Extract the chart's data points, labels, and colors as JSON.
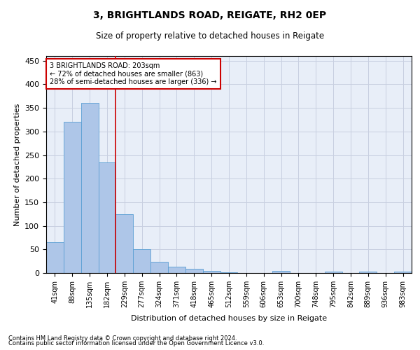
{
  "title": "3, BRIGHTLANDS ROAD, REIGATE, RH2 0EP",
  "subtitle": "Size of property relative to detached houses in Reigate",
  "xlabel": "Distribution of detached houses by size in Reigate",
  "ylabel": "Number of detached properties",
  "footnote1": "Contains HM Land Registry data © Crown copyright and database right 2024.",
  "footnote2": "Contains public sector information licensed under the Open Government Licence v3.0.",
  "bar_labels": [
    "41sqm",
    "88sqm",
    "135sqm",
    "182sqm",
    "229sqm",
    "277sqm",
    "324sqm",
    "371sqm",
    "418sqm",
    "465sqm",
    "512sqm",
    "559sqm",
    "606sqm",
    "653sqm",
    "700sqm",
    "748sqm",
    "795sqm",
    "842sqm",
    "889sqm",
    "936sqm",
    "983sqm"
  ],
  "bar_values": [
    65,
    320,
    360,
    234,
    125,
    50,
    24,
    13,
    9,
    5,
    2,
    0,
    0,
    4,
    0,
    0,
    3,
    0,
    3,
    0,
    3
  ],
  "bar_color": "#aec6e8",
  "bar_edge_color": "#5a9fd4",
  "annotation_text": "3 BRIGHTLANDS ROAD: 203sqm\n← 72% of detached houses are smaller (863)\n28% of semi-detached houses are larger (336) →",
  "annotation_box_color": "#ffffff",
  "annotation_edge_color": "#cc0000",
  "vline_x": 3.5,
  "vline_color": "#cc0000",
  "ylim": [
    0,
    460
  ],
  "yticks": [
    0,
    50,
    100,
    150,
    200,
    250,
    300,
    350,
    400,
    450
  ],
  "grid_color": "#c8cfe0",
  "background_color": "#e8eef8"
}
